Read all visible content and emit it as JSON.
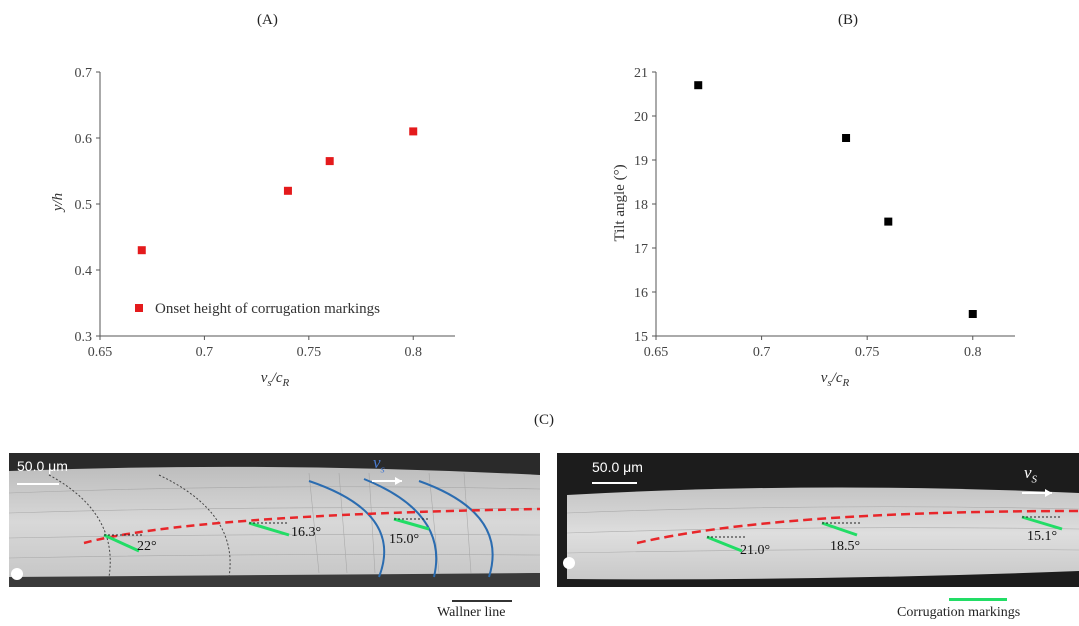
{
  "panels": {
    "a": "(A)",
    "b": "(B)",
    "c": "(C)"
  },
  "chart_data": [
    {
      "type": "scatter",
      "xlabel_main": "v",
      "xlabel_sub1": "s",
      "xlabel_sep": "/c",
      "xlabel_sub2": "R",
      "ylabel": "y/h",
      "xlim": [
        0.65,
        0.82
      ],
      "ylim": [
        0.3,
        0.7
      ],
      "xticks": [
        "0.65",
        "0.7",
        "0.75",
        "0.8"
      ],
      "yticks": [
        "0.3",
        "0.4",
        "0.5",
        "0.6",
        "0.7"
      ],
      "legend_position": "bottom-right",
      "series": [
        {
          "name": "Onset height of corrugation markings",
          "color": "#e41a1c",
          "x": [
            0.67,
            0.74,
            0.76,
            0.8
          ],
          "y": [
            0.43,
            0.52,
            0.565,
            0.61
          ]
        }
      ]
    },
    {
      "type": "scatter",
      "xlabel_main": "v",
      "xlabel_sub1": "s",
      "xlabel_sep": "/c",
      "xlabel_sub2": "R",
      "ylabel": "Tilt angle (°)",
      "xlim": [
        0.65,
        0.82
      ],
      "ylim": [
        15,
        21
      ],
      "xticks": [
        "0.65",
        "0.7",
        "0.75",
        "0.8"
      ],
      "yticks": [
        "15",
        "16",
        "17",
        "18",
        "19",
        "20",
        "21"
      ],
      "series": [
        {
          "color": "#000000",
          "x": [
            0.67,
            0.74,
            0.76,
            0.8
          ],
          "y": [
            20.7,
            19.5,
            17.6,
            15.5
          ]
        }
      ]
    }
  ],
  "micrographs": {
    "left": {
      "scale": "50.0 μm",
      "velocity_main": "v",
      "velocity_sub": "s",
      "angles": [
        "22°",
        "16.3°",
        "15.0°"
      ]
    },
    "right": {
      "scale": "50.0 μm",
      "velocity_main": "v",
      "velocity_sub": "S",
      "angles": [
        "21.0°",
        "18.5°",
        "15.1°"
      ]
    },
    "colors": {
      "wallner": "#2b6cb0",
      "onset": "#e8262a",
      "corrugation": "#22dd66"
    }
  },
  "legends": {
    "wallner": "Wallner line",
    "corrugation": "Corrugation markings"
  }
}
